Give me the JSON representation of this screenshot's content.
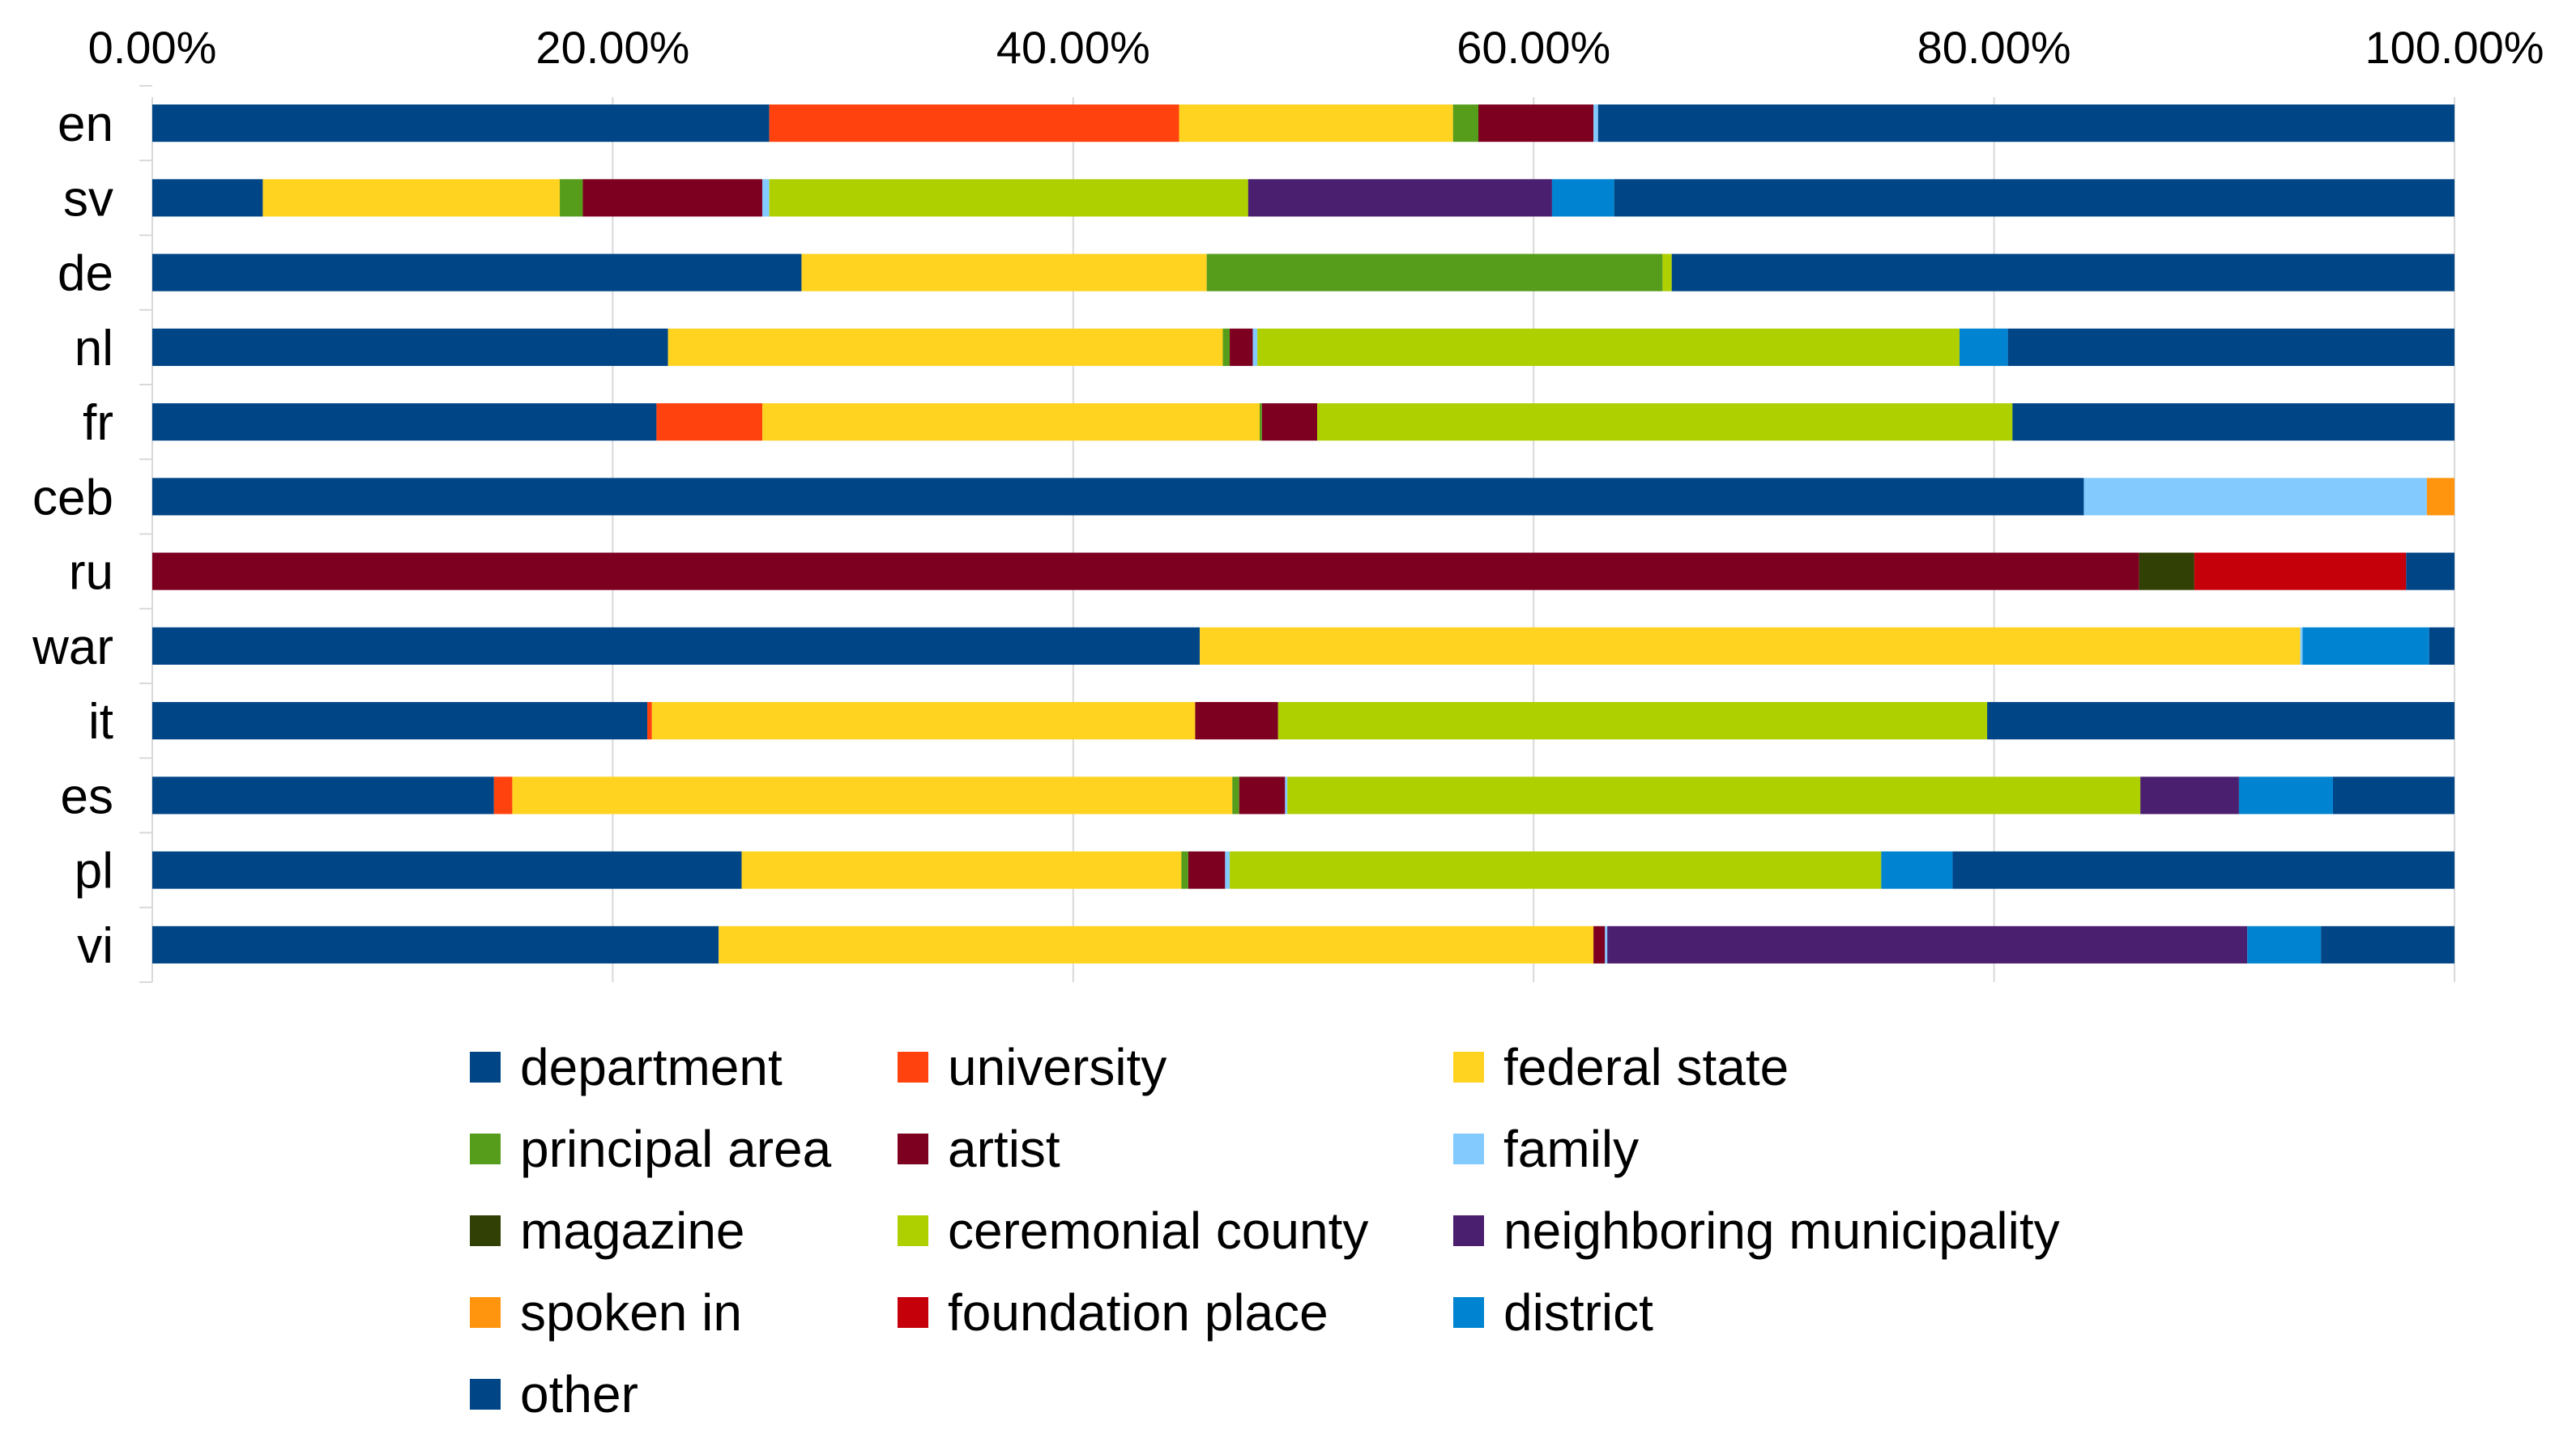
{
  "chart_data": {
    "type": "bar",
    "orientation": "horizontal",
    "stacked": "percent",
    "x_ticks": [
      "0.00%",
      "20.00%",
      "40.00%",
      "60.00%",
      "80.00%",
      "100.00%"
    ],
    "xlim": [
      0,
      100
    ],
    "grid": "vertical",
    "legend_position": "bottom",
    "categories": [
      "en",
      "sv",
      "de",
      "nl",
      "fr",
      "ceb",
      "ru",
      "war",
      "it",
      "es",
      "pl",
      "vi"
    ],
    "series": [
      {
        "name": "department",
        "color": "#004586",
        "values": [
          26.8,
          4.8,
          28.2,
          22.4,
          21.9,
          83.9,
          0,
          45.5,
          21.5,
          14.9,
          25.6,
          24.6
        ]
      },
      {
        "name": "university",
        "color": "#ff420e",
        "values": [
          17.8,
          0,
          0,
          0,
          4.6,
          0,
          0,
          0,
          0.2,
          0.8,
          0,
          0
        ]
      },
      {
        "name": "federal state",
        "color": "#ffd320",
        "values": [
          11.9,
          12.9,
          17.6,
          24.1,
          21.6,
          0,
          0,
          47.8,
          23.6,
          31.4,
          19.1,
          38.0
        ]
      },
      {
        "name": "principal area",
        "color": "#579d1c",
        "values": [
          1.1,
          1.0,
          19.8,
          0.3,
          0.1,
          0,
          0,
          0,
          0,
          0.3,
          0.3,
          0
        ]
      },
      {
        "name": "artist",
        "color": "#7e0021",
        "values": [
          5.0,
          7.8,
          0,
          1.0,
          2.4,
          0,
          86.3,
          0,
          3.6,
          2.0,
          1.6,
          0.5
        ]
      },
      {
        "name": "family",
        "color": "#83caff",
        "values": [
          0.2,
          0.3,
          0,
          0.2,
          0,
          14.9,
          0,
          0.1,
          0,
          0.1,
          0.2,
          0.1
        ]
      },
      {
        "name": "magazine",
        "color": "#314004",
        "values": [
          0,
          0,
          0,
          0,
          0,
          0,
          2.4,
          0,
          0,
          0,
          0,
          0
        ]
      },
      {
        "name": "ceremonial county",
        "color": "#aecf00",
        "values": [
          0,
          20.8,
          0.4,
          30.5,
          30.2,
          0,
          0,
          0,
          30.8,
          37.2,
          28.3,
          0
        ]
      },
      {
        "name": "neighboring municipality",
        "color": "#4b1f6f",
        "values": [
          0,
          13.2,
          0,
          0,
          0,
          0,
          0,
          0,
          0,
          4.3,
          0,
          27.8
        ]
      },
      {
        "name": "spoken in",
        "color": "#ff950e",
        "values": [
          0,
          0,
          0,
          0,
          0,
          1.2,
          0,
          0,
          0,
          0,
          0,
          0
        ]
      },
      {
        "name": "foundation place",
        "color": "#c5000b",
        "values": [
          0,
          0,
          0,
          0,
          0,
          0,
          9.2,
          0,
          0,
          0,
          0,
          0
        ]
      },
      {
        "name": "district",
        "color": "#0084d1",
        "values": [
          0,
          2.7,
          0,
          2.1,
          0,
          0,
          0,
          5.5,
          0,
          4.1,
          3.1,
          3.2
        ]
      },
      {
        "name": "other",
        "color": "#004586",
        "values": [
          37.2,
          36.5,
          34.0,
          19.4,
          19.2,
          0,
          2.1,
          1.1,
          20.3,
          5.3,
          21.8,
          5.8
        ]
      }
    ]
  }
}
